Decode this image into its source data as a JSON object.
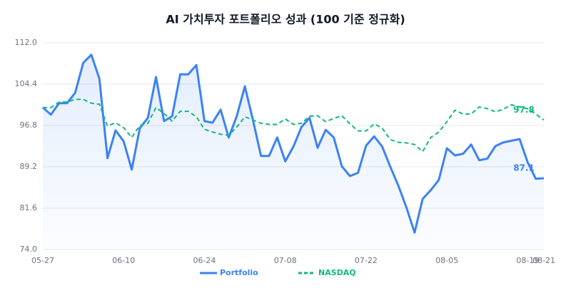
{
  "chart_data": {
    "type": "line",
    "title": "AI 가치투자 포트폴리오 성과 (100 기준 정규화)",
    "categories": [
      "05-27",
      null,
      null,
      null,
      null,
      null,
      null,
      null,
      null,
      null,
      "06-10",
      null,
      null,
      null,
      null,
      null,
      null,
      null,
      null,
      null,
      "06-24",
      null,
      null,
      null,
      null,
      null,
      null,
      null,
      null,
      null,
      "07-08",
      null,
      null,
      null,
      null,
      null,
      null,
      null,
      null,
      null,
      "07-22",
      null,
      null,
      null,
      null,
      null,
      null,
      null,
      null,
      null,
      "08-05",
      null,
      null,
      null,
      null,
      null,
      null,
      null,
      null,
      null,
      "08-19",
      null,
      "08-21"
    ],
    "series": [
      {
        "name": "Portfolio",
        "color": "#3b82f6",
        "dashed": false,
        "fill": true,
        "values": [
          100.1,
          98.8,
          100.9,
          100.9,
          102.8,
          108.3,
          109.8,
          105.4,
          90.8,
          95.9,
          93.9,
          88.7,
          96.3,
          98.2,
          105.7,
          97.6,
          98.5,
          106.2,
          106.2,
          107.9,
          97.6,
          97.3,
          99.7,
          94.6,
          98.5,
          104.0,
          97.8,
          91.2,
          91.2,
          94.6,
          90.2,
          92.9,
          96.5,
          98.2,
          92.7,
          96.0,
          94.6,
          89.3,
          87.5,
          88.1,
          93.1,
          94.8,
          92.9,
          89.2,
          85.7,
          81.7,
          77.1,
          83.3,
          84.9,
          86.8,
          92.6,
          91.3,
          91.6,
          93.3,
          90.4,
          90.7,
          93.0,
          93.7,
          94.0,
          94.3,
          90.0,
          87.0,
          87.1
        ],
        "value_labels": [
          null,
          null,
          null,
          null,
          null,
          null,
          null,
          null,
          null,
          null,
          null,
          null,
          null,
          null,
          null,
          null,
          null,
          null,
          null,
          null,
          null,
          null,
          null,
          null,
          null,
          null,
          null,
          null,
          null,
          null,
          null,
          null,
          null,
          null,
          null,
          null,
          null,
          null,
          null,
          null,
          null,
          null,
          null,
          null,
          null,
          null,
          null,
          null,
          null,
          null,
          null,
          null,
          null,
          null,
          null,
          null,
          null,
          null,
          null,
          null,
          null,
          null,
          "87.1"
        ]
      },
      {
        "name": "NASDAQ",
        "color": "#10b981",
        "dashed": true,
        "fill": false,
        "values": [
          100.1,
          100.1,
          101.1,
          101.1,
          101.6,
          101.6,
          100.9,
          100.7,
          96.7,
          97.3,
          96.4,
          94.6,
          96.8,
          97.2,
          100.1,
          99.0,
          97.6,
          99.4,
          99.4,
          98.4,
          96.1,
          95.6,
          95.2,
          95.0,
          96.5,
          98.4,
          97.8,
          97.2,
          97.0,
          97.0,
          98.0,
          97.0,
          97.2,
          98.5,
          98.6,
          97.5,
          98.1,
          98.6,
          97.1,
          95.8,
          95.8,
          97.1,
          96.3,
          94.2,
          93.7,
          93.6,
          93.3,
          92.0,
          94.6,
          95.6,
          97.5,
          99.6,
          98.9,
          98.9,
          100.2,
          99.9,
          99.3,
          99.8,
          100.6,
          100.2,
          99.9,
          98.9,
          97.8
        ],
        "value_labels": [
          null,
          null,
          null,
          null,
          null,
          null,
          null,
          null,
          null,
          null,
          null,
          null,
          null,
          null,
          null,
          null,
          null,
          null,
          null,
          null,
          null,
          null,
          null,
          null,
          null,
          null,
          null,
          null,
          null,
          null,
          null,
          null,
          null,
          null,
          null,
          null,
          null,
          null,
          null,
          null,
          null,
          null,
          null,
          null,
          null,
          null,
          null,
          null,
          null,
          null,
          null,
          null,
          null,
          null,
          null,
          null,
          null,
          null,
          null,
          null,
          null,
          null,
          "97.8"
        ]
      }
    ],
    "ylim": [
      74,
      112
    ],
    "yticks": [
      {
        "value": 74,
        "label": "74.0"
      },
      {
        "value": 81.6,
        "label": "81.6"
      },
      {
        "value": 89.2,
        "label": "89.2"
      },
      {
        "value": 96.8,
        "label": "96.8"
      },
      {
        "value": 104.4,
        "label": "104.4"
      },
      {
        "value": 112,
        "label": "112.0"
      }
    ],
    "grid": true,
    "legend": "bottom"
  }
}
